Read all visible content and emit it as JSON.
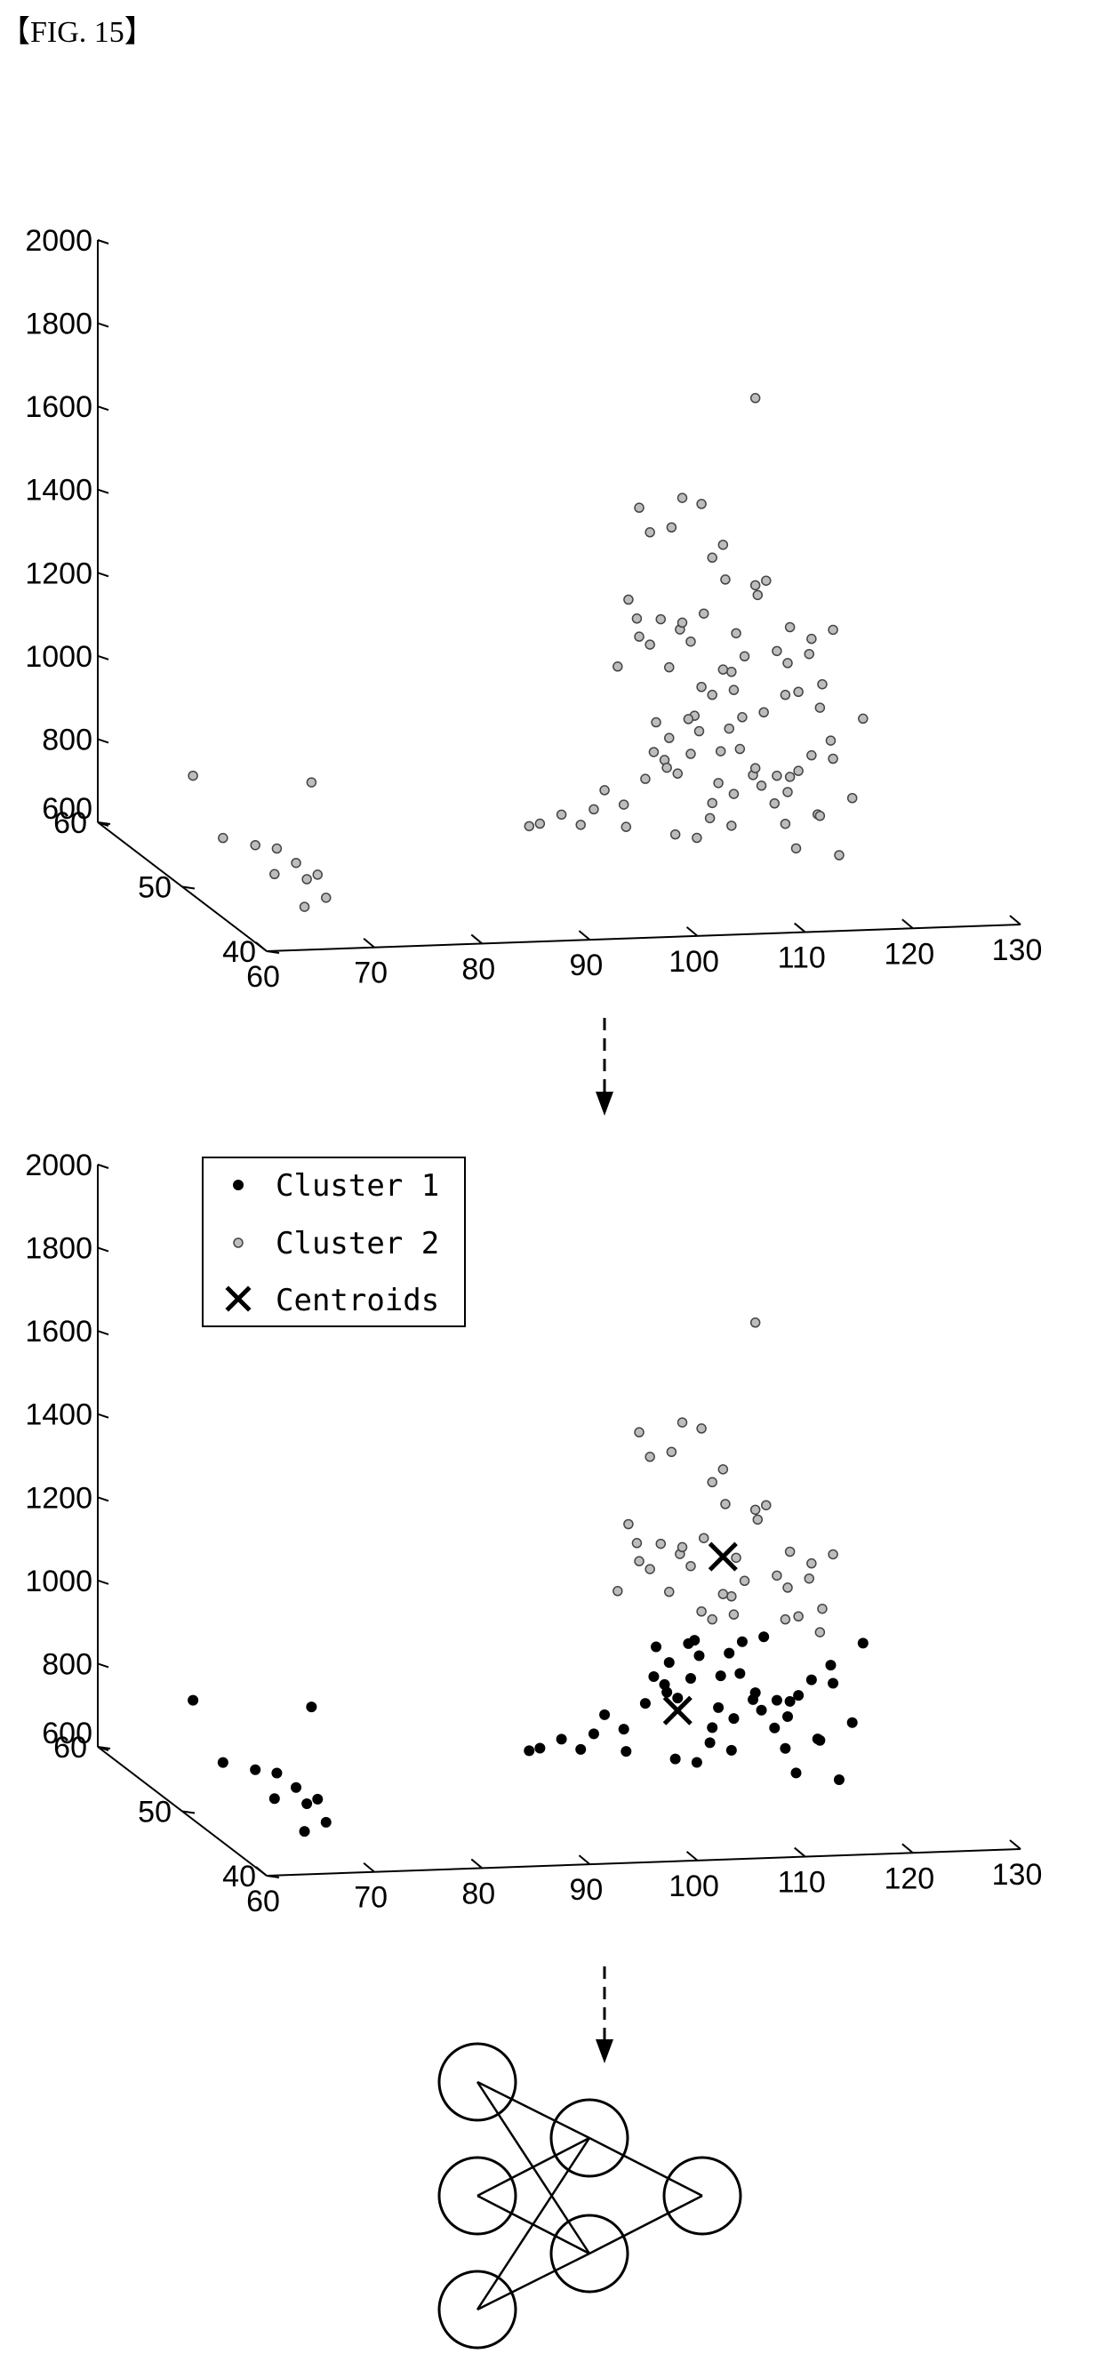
{
  "figure_label": "【FIG. 15】",
  "colors": {
    "cluster1": "#000000",
    "cluster2": "#bdbdbd",
    "centroid": "#000000",
    "axis": "#000000",
    "arrow": "#000000"
  },
  "chart_data": [
    {
      "type": "scatter",
      "title": "",
      "xlabel": "",
      "ylabel": "",
      "zlabel": "",
      "xlim": [
        60,
        130
      ],
      "ylim": [
        40,
        60
      ],
      "zlim": [
        600,
        2000
      ],
      "x_ticks": [
        "60",
        "70",
        "80",
        "90",
        "100",
        "110",
        "120",
        "130"
      ],
      "y_ticks": [
        "40",
        "50",
        "60"
      ],
      "z_ticks": [
        "600",
        "800",
        "1000",
        "1200",
        "1400",
        "1600",
        "1800",
        "2000"
      ],
      "legend": null,
      "series": [
        {
          "values": [
            [
              61,
              50,
              866
            ],
            [
              63,
              49,
              730
            ],
            [
              66,
              49,
              710
            ],
            [
              67,
              48,
              655
            ],
            [
              68,
              49,
              700
            ],
            [
              69,
              48,
              680
            ],
            [
              70,
              48,
              640
            ],
            [
              71,
              48,
              650
            ],
            [
              69,
              47,
              590
            ],
            [
              71,
              47,
              610
            ],
            [
              72,
              50,
              840
            ],
            [
              93,
              51,
              700
            ],
            [
              94,
              51,
              705
            ],
            [
              96,
              51,
              725
            ],
            [
              97,
              50,
              715
            ],
            [
              99,
              51,
              735
            ],
            [
              100,
              51,
              780
            ],
            [
              101,
              50,
              760
            ],
            [
              102,
              51,
              690
            ],
            [
              103,
              50,
              820
            ],
            [
              103,
              49,
              900
            ],
            [
              104,
              50,
              955
            ],
            [
              104,
              49,
              880
            ],
            [
              105,
              50,
              845
            ],
            [
              105,
              49,
              700
            ],
            [
              106,
              51,
              900
            ],
            [
              106,
              50,
              830
            ],
            [
              106,
              48,
              1000
            ],
            [
              107,
              50,
              960
            ],
            [
              107,
              49,
              690
            ],
            [
              108,
              50,
              930
            ],
            [
              108,
              51,
              860
            ],
            [
              109,
              49,
              820
            ],
            [
              109,
              50,
              720
            ],
            [
              110,
              51,
              740
            ],
            [
              110,
              50,
              880
            ],
            [
              110,
              49,
              950
            ],
            [
              111,
              50,
              700
            ],
            [
              111,
              49,
              900
            ],
            [
              112,
              51,
              760
            ],
            [
              112,
              50,
              960
            ],
            [
              113,
              50,
              820
            ],
            [
              113,
              49,
              810
            ],
            [
              114,
              51,
              820
            ],
            [
              114,
              50,
              970
            ],
            [
              115,
              50,
              750
            ],
            [
              116,
              50,
              700
            ],
            [
              116,
              51,
              800
            ],
            [
              117,
              50,
              640
            ],
            [
              117,
              51,
              760
            ],
            [
              118,
              51,
              810
            ],
            [
              118,
              52,
              780
            ],
            [
              119,
              50,
              720
            ],
            [
              120,
              51,
              700
            ],
            [
              120,
              52,
              830
            ],
            [
              121,
              50,
              620
            ],
            [
              121,
              51,
              880
            ],
            [
              122,
              52,
              820
            ],
            [
              123,
              51,
              740
            ],
            [
              124,
              51,
              930
            ],
            [
              102,
              52,
              1060
            ],
            [
              103,
              51,
              1190
            ],
            [
              103,
              52,
              1220
            ],
            [
              104,
              52,
              1130
            ],
            [
              105,
              52,
              1110
            ],
            [
              106,
              51,
              1070
            ],
            [
              106,
              52,
              1170
            ],
            [
              107,
              51,
              1160
            ],
            [
              107,
              52,
              1390
            ],
            [
              108,
              52,
              1160
            ],
            [
              108,
              51,
              1130
            ],
            [
              109,
              51,
              1020
            ],
            [
              110,
              51,
              1330
            ],
            [
              110,
              51,
              1000
            ],
            [
              110,
              52,
              1180
            ],
            [
              111,
              50,
              1070
            ],
            [
              111,
              51,
              1060
            ],
            [
              112,
              52,
              1260
            ],
            [
              112,
              51,
              1010
            ],
            [
              113,
              51,
              1090
            ],
            [
              113,
              52,
              1130
            ],
            [
              114,
              51,
              1260
            ],
            [
              115,
              51,
              1270
            ],
            [
              115,
              52,
              1220
            ],
            [
              116,
              50,
              1010
            ],
            [
              116,
              51,
              1100
            ],
            [
              117,
              51,
              1070
            ],
            [
              118,
              52,
              1140
            ],
            [
              118,
              51,
              1000
            ],
            [
              119,
              51,
              1090
            ],
            [
              120,
              52,
              1110
            ],
            [
              120,
              51,
              960
            ],
            [
              121,
              52,
              1000
            ],
            [
              122,
              52,
              1130
            ],
            [
              104,
              52,
              1440
            ],
            [
              105,
              52,
              1380
            ],
            [
              108,
              52,
              1460
            ],
            [
              109,
              51,
              1460
            ],
            [
              111,
              51,
              1360
            ],
            [
              114,
              51,
              1710
            ]
          ]
        }
      ]
    },
    {
      "type": "scatter",
      "title": "",
      "xlabel": "",
      "ylabel": "",
      "zlabel": "",
      "xlim": [
        60,
        130
      ],
      "ylim": [
        40,
        60
      ],
      "zlim": [
        600,
        2000
      ],
      "x_ticks": [
        "60",
        "70",
        "80",
        "90",
        "100",
        "110",
        "120",
        "130"
      ],
      "y_ticks": [
        "40",
        "50",
        "60"
      ],
      "z_ticks": [
        "600",
        "800",
        "1000",
        "1200",
        "1400",
        "1600",
        "1800",
        "2000"
      ],
      "legend": {
        "placement": "top-left",
        "entries": [
          "Cluster 1",
          "Cluster 2",
          "Centroids"
        ]
      },
      "series": [
        {
          "name": "Cluster 1",
          "values": [
            [
              61,
              50,
              866
            ],
            [
              63,
              49,
              730
            ],
            [
              66,
              49,
              710
            ],
            [
              67,
              48,
              655
            ],
            [
              68,
              49,
              700
            ],
            [
              69,
              48,
              680
            ],
            [
              70,
              48,
              640
            ],
            [
              71,
              48,
              650
            ],
            [
              69,
              47,
              590
            ],
            [
              71,
              47,
              610
            ],
            [
              72,
              50,
              840
            ],
            [
              93,
              51,
              700
            ],
            [
              94,
              51,
              705
            ],
            [
              96,
              51,
              725
            ],
            [
              97,
              50,
              715
            ],
            [
              99,
              51,
              735
            ],
            [
              100,
              51,
              780
            ],
            [
              101,
              50,
              760
            ],
            [
              102,
              51,
              690
            ],
            [
              103,
              50,
              820
            ],
            [
              103,
              49,
              900
            ],
            [
              104,
              50,
              955
            ],
            [
              104,
              49,
              880
            ],
            [
              105,
              50,
              845
            ],
            [
              105,
              49,
              700
            ],
            [
              106,
              51,
              900
            ],
            [
              106,
              50,
              830
            ],
            [
              106,
              48,
              1000
            ],
            [
              107,
              50,
              960
            ],
            [
              107,
              49,
              690
            ],
            [
              108,
              50,
              930
            ],
            [
              108,
              51,
              860
            ],
            [
              109,
              49,
              820
            ],
            [
              109,
              50,
              720
            ],
            [
              110,
              51,
              740
            ],
            [
              110,
              50,
              880
            ],
            [
              110,
              49,
              950
            ],
            [
              111,
              50,
              700
            ],
            [
              111,
              49,
              900
            ],
            [
              112,
              51,
              760
            ],
            [
              112,
              50,
              960
            ],
            [
              113,
              50,
              820
            ],
            [
              113,
              49,
              810
            ],
            [
              114,
              51,
              820
            ],
            [
              114,
              50,
              970
            ],
            [
              115,
              50,
              750
            ],
            [
              116,
              50,
              700
            ],
            [
              116,
              51,
              800
            ],
            [
              117,
              50,
              640
            ],
            [
              117,
              51,
              760
            ],
            [
              118,
              51,
              810
            ],
            [
              118,
              52,
              780
            ],
            [
              119,
              50,
              720
            ],
            [
              120,
              51,
              700
            ],
            [
              120,
              52,
              830
            ],
            [
              121,
              50,
              620
            ],
            [
              121,
              51,
              880
            ],
            [
              122,
              52,
              820
            ],
            [
              123,
              51,
              740
            ],
            [
              124,
              51,
              930
            ]
          ]
        },
        {
          "name": "Cluster 2",
          "values": [
            [
              102,
              52,
              1060
            ],
            [
              103,
              51,
              1190
            ],
            [
              103,
              52,
              1220
            ],
            [
              104,
              52,
              1130
            ],
            [
              105,
              52,
              1110
            ],
            [
              106,
              51,
              1070
            ],
            [
              106,
              52,
              1170
            ],
            [
              107,
              51,
              1160
            ],
            [
              107,
              52,
              1390
            ],
            [
              108,
              52,
              1160
            ],
            [
              108,
              51,
              1130
            ],
            [
              109,
              51,
              1020
            ],
            [
              110,
              51,
              1330
            ],
            [
              110,
              51,
              1000
            ],
            [
              110,
              52,
              1180
            ],
            [
              111,
              50,
              1070
            ],
            [
              111,
              51,
              1060
            ],
            [
              112,
              52,
              1260
            ],
            [
              112,
              51,
              1010
            ],
            [
              113,
              51,
              1090
            ],
            [
              113,
              52,
              1130
            ],
            [
              114,
              51,
              1260
            ],
            [
              115,
              51,
              1270
            ],
            [
              115,
              52,
              1220
            ],
            [
              116,
              50,
              1010
            ],
            [
              116,
              51,
              1100
            ],
            [
              117,
              51,
              1070
            ],
            [
              118,
              52,
              1140
            ],
            [
              118,
              51,
              1000
            ],
            [
              119,
              51,
              1090
            ],
            [
              120,
              52,
              1110
            ],
            [
              120,
              51,
              960
            ],
            [
              121,
              52,
              1000
            ],
            [
              122,
              52,
              1130
            ],
            [
              104,
              52,
              1440
            ],
            [
              105,
              52,
              1380
            ],
            [
              108,
              52,
              1460
            ],
            [
              109,
              51,
              1460
            ],
            [
              111,
              51,
              1360
            ],
            [
              114,
              51,
              1710
            ]
          ]
        },
        {
          "name": "Centroids",
          "values": [
            [
              106,
              50,
              800
            ],
            [
              111,
              51,
              1150
            ]
          ]
        }
      ]
    }
  ],
  "network": {
    "nodes": [
      "in-1",
      "in-2",
      "in-3",
      "hidden-1",
      "hidden-2",
      "out-1"
    ],
    "edges": [
      [
        0,
        3
      ],
      [
        0,
        4
      ],
      [
        1,
        3
      ],
      [
        1,
        4
      ],
      [
        2,
        3
      ],
      [
        2,
        4
      ],
      [
        3,
        5
      ],
      [
        4,
        5
      ]
    ]
  }
}
